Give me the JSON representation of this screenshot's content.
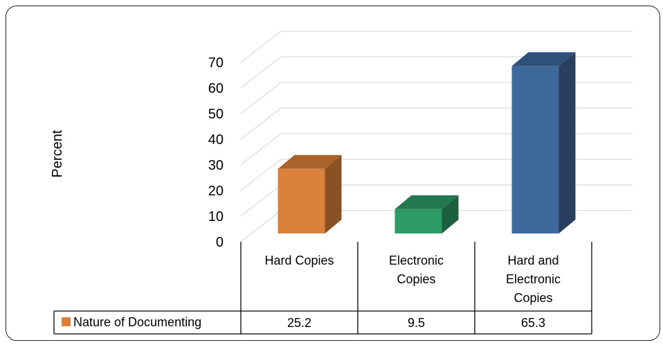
{
  "chart_data": {
    "type": "bar",
    "ylabel": "Percent",
    "xlabel": "",
    "ylim": [
      0,
      70
    ],
    "yticks": [
      0,
      10,
      20,
      30,
      40,
      50,
      60,
      70
    ],
    "categories": [
      [
        "Hard Copies"
      ],
      [
        "Electronic",
        "Copies"
      ],
      [
        "Hard and",
        "Electronic",
        "Copies"
      ]
    ],
    "series": [
      {
        "name": "Nature of Documenting",
        "values": [
          25.2,
          9.5,
          65.3
        ]
      }
    ],
    "table_values": [
      "25.2",
      "9.5",
      "65.3"
    ],
    "bar_colors": [
      {
        "front": "#D9813D",
        "side": "#8A5223",
        "top": "#A9622A"
      },
      {
        "front": "#2E9B66",
        "side": "#1C5F3D",
        "top": "#23784F"
      },
      {
        "front": "#3F689B",
        "side": "#283F5F",
        "top": "#2F5078"
      }
    ],
    "legend_color": "#E07E33",
    "grid": true,
    "data_table": true
  }
}
